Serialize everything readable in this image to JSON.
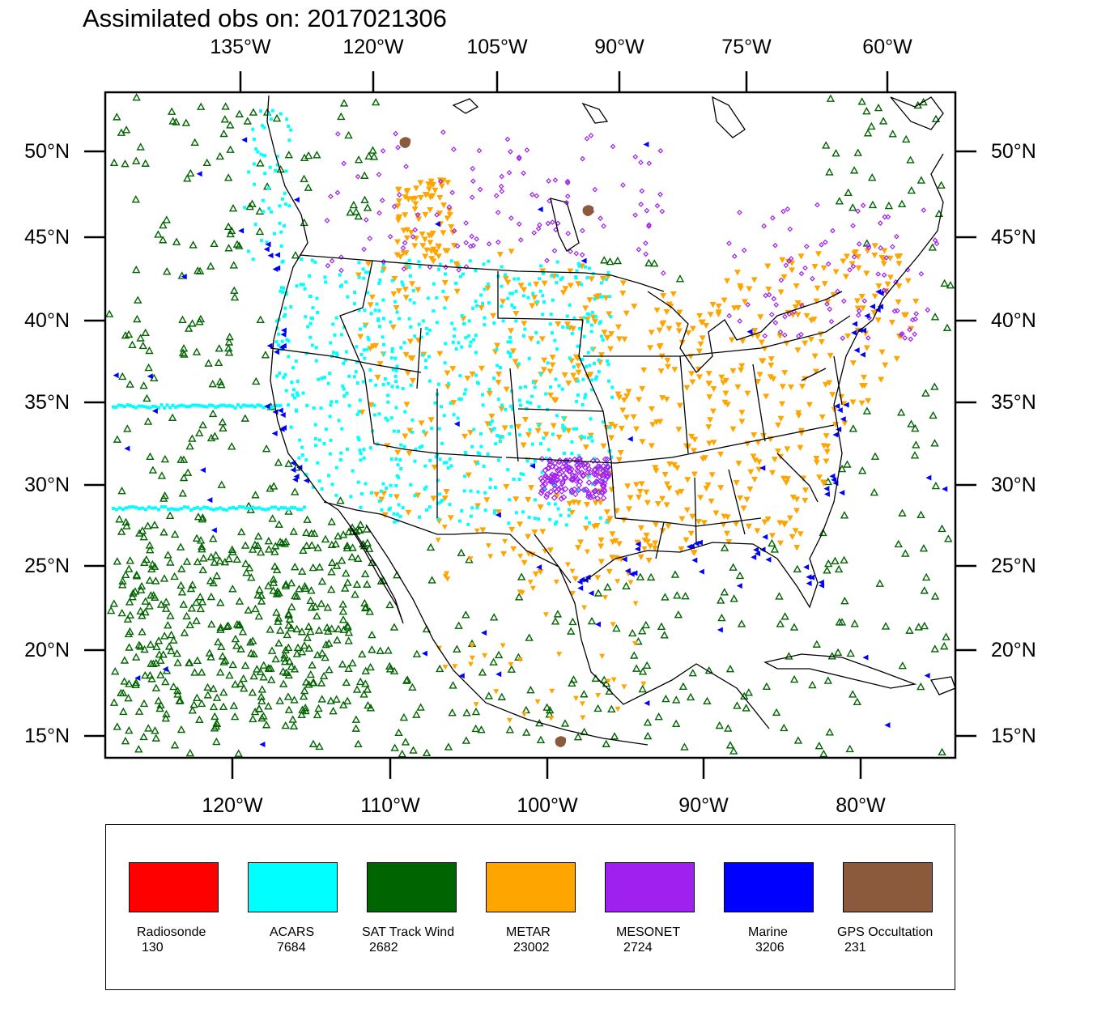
{
  "title": "Assimilated obs on: 2017021306",
  "top_axis_labels": [
    "135°W",
    "120°W",
    "105°W",
    "90°W",
    "75°W",
    "60°W"
  ],
  "bottom_axis_labels": [
    "120°W",
    "110°W",
    "100°W",
    "90°W",
    "80°W"
  ],
  "left_axis_labels": [
    "50°N",
    "45°N",
    "40°N",
    "35°N",
    "30°N",
    "25°N",
    "20°N",
    "15°N"
  ],
  "right_axis_labels": [
    "50°N",
    "45°N",
    "40°N",
    "35°N",
    "30°N",
    "25°N",
    "20°N",
    "15°N"
  ],
  "legend": [
    {
      "name": "Radiosonde",
      "count": "130",
      "color": "#ff0000"
    },
    {
      "name": "ACARS",
      "count": "7684",
      "color": "#00ffff"
    },
    {
      "name": "SAT Track Wind",
      "count": "2682",
      "color": "#006400"
    },
    {
      "name": "METAR",
      "count": "23002",
      "color": "#ffa500"
    },
    {
      "name": "MESONET",
      "count": "2724",
      "color": "#a020f0"
    },
    {
      "name": "Marine",
      "count": "3206",
      "color": "#0000ff"
    },
    {
      "name": "GPS Occultation",
      "count": "231",
      "color": "#8b5a3c"
    }
  ]
}
